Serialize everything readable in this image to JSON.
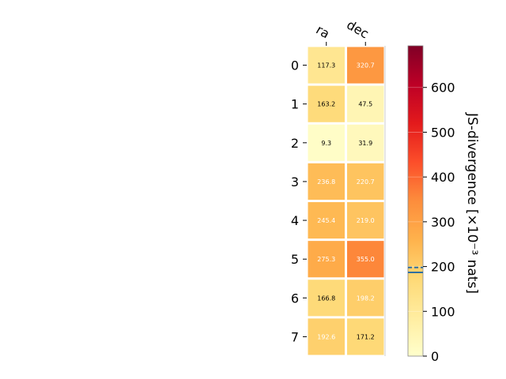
{
  "chart_data": {
    "type": "heatmap",
    "columns": [
      "ra",
      "dec"
    ],
    "rows": [
      "0",
      "1",
      "2",
      "3",
      "4",
      "5",
      "6",
      "7"
    ],
    "values": [
      [
        117.3,
        320.7
      ],
      [
        163.2,
        47.5
      ],
      [
        9.3,
        31.9
      ],
      [
        236.8,
        220.7
      ],
      [
        245.4,
        219.0
      ],
      [
        275.3,
        355.0
      ],
      [
        166.8,
        198.2
      ],
      [
        192.6,
        171.2
      ]
    ],
    "value_labels": [
      [
        "117.3",
        "320.7"
      ],
      [
        "163.2",
        "47.5"
      ],
      [
        "9.3",
        "31.9"
      ],
      [
        "236.8",
        "220.7"
      ],
      [
        "245.4",
        "219.0"
      ],
      [
        "275.3",
        "355.0"
      ],
      [
        "166.8",
        "198.2"
      ],
      [
        "192.6",
        "171.2"
      ]
    ],
    "colorbar": {
      "label": "JS-divergence [×10⁻³ nats]",
      "range": [
        0,
        693
      ],
      "ticks": [
        "0",
        "100",
        "200",
        "300",
        "400",
        "500",
        "600"
      ],
      "tick_values": [
        0,
        100,
        200,
        300,
        400,
        500,
        600
      ],
      "solid_line_value": 187,
      "dashed_line_value": 198,
      "line_color": "#2f6fa0",
      "colormap": "YlOrRd"
    },
    "grid": false
  }
}
